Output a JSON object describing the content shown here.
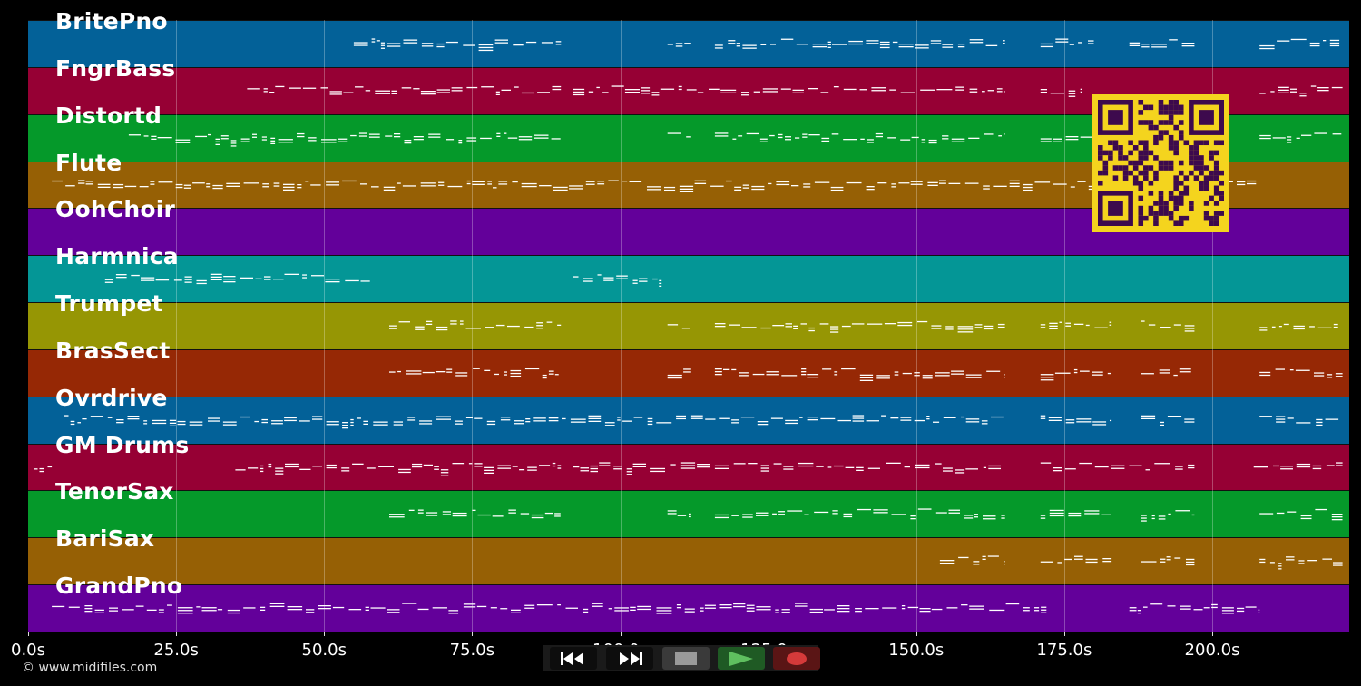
{
  "tracks": [
    {
      "name": "BritePno",
      "color": "#036198"
    },
    {
      "name": "FngrBass",
      "color": "#960034"
    },
    {
      "name": "Distortd",
      "color": "#05992a"
    },
    {
      "name": "Flute",
      "color": "#966005"
    },
    {
      "name": "OohChoir",
      "color": "#63009a"
    },
    {
      "name": "Harmnica",
      "color": "#049696"
    },
    {
      "name": "Trumpet",
      "color": "#969604"
    },
    {
      "name": "BrasSect",
      "color": "#962805"
    },
    {
      "name": "Ovrdrive",
      "color": "#036198"
    },
    {
      "name": "GM Drums",
      "color": "#960034"
    },
    {
      "name": "TenorSax",
      "color": "#05992a"
    },
    {
      "name": "BariSax",
      "color": "#966005"
    },
    {
      "name": "GrandPno",
      "color": "#63009a"
    }
  ],
  "timeline": {
    "max_seconds": 223,
    "ticks": [
      "0.0s",
      "25.0s",
      "50.0s",
      "75.0s",
      "100.0s",
      "125.0s",
      "150.0s",
      "175.0s",
      "200.0s"
    ]
  },
  "note_segments": [
    [
      [
        55,
        90
      ],
      [
        108,
        112
      ],
      [
        116,
        165
      ],
      [
        171,
        180
      ],
      [
        186,
        197
      ],
      [
        208,
        222
      ]
    ],
    [
      [
        37,
        90
      ],
      [
        92,
        165
      ],
      [
        171,
        178
      ],
      [
        208,
        222
      ]
    ],
    [
      [
        17,
        90
      ],
      [
        108,
        112
      ],
      [
        116,
        165
      ],
      [
        171,
        180
      ],
      [
        208,
        222
      ]
    ],
    [
      [
        4,
        185
      ],
      [
        202,
        208
      ]
    ],
    [],
    [
      [
        13,
        58
      ],
      [
        92,
        107
      ]
    ],
    [
      [
        61,
        90
      ],
      [
        108,
        112
      ],
      [
        116,
        165
      ],
      [
        171,
        183
      ],
      [
        188,
        197
      ],
      [
        208,
        222
      ]
    ],
    [
      [
        61,
        90
      ],
      [
        108,
        112
      ],
      [
        116,
        165
      ],
      [
        171,
        183
      ],
      [
        188,
        197
      ],
      [
        208,
        222
      ]
    ],
    [
      [
        6,
        165
      ],
      [
        171,
        183
      ],
      [
        188,
        197
      ],
      [
        208,
        222
      ]
    ],
    [
      [
        1,
        4
      ],
      [
        35,
        90
      ],
      [
        92,
        165
      ],
      [
        171,
        197
      ],
      [
        207,
        222
      ]
    ],
    [
      [
        61,
        90
      ],
      [
        108,
        112
      ],
      [
        116,
        165
      ],
      [
        171,
        183
      ],
      [
        188,
        197
      ],
      [
        208,
        222
      ]
    ],
    [
      [
        154,
        165
      ],
      [
        171,
        183
      ],
      [
        188,
        197
      ],
      [
        208,
        222
      ]
    ],
    [
      [
        4,
        172
      ],
      [
        186,
        208
      ]
    ]
  ],
  "credit": "© www.midifiles.com",
  "transport": {
    "rewind_icon": "rewind-icon",
    "fast_forward_icon": "fast-forward-icon",
    "stop_icon": "stop-icon",
    "play_icon": "play-icon",
    "record_icon": "record-icon"
  },
  "qr_code": {
    "color": "#f4d41e",
    "module_color": "#3d0a4d"
  }
}
